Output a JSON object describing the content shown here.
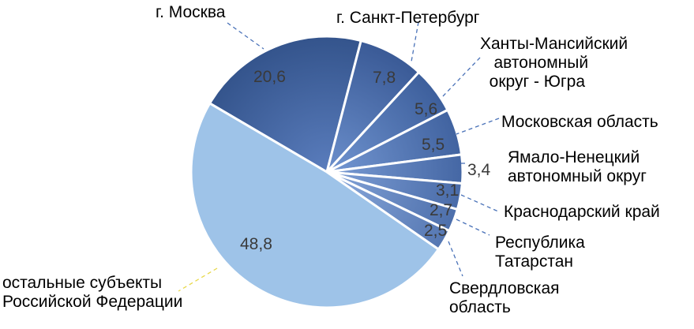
{
  "chart_data": {
    "type": "pie",
    "title": "",
    "start_angle_deg": -149.6,
    "center": [
      414,
      218
    ],
    "radius": 172,
    "slices": [
      {
        "label": "г. Москва",
        "value": 20.6,
        "value_label": "20,6",
        "color_dark": "#34548c",
        "color_light": "#5a7dbd"
      },
      {
        "label": "г. Санкт-Петербург",
        "value": 7.8,
        "value_label": "7,8",
        "color_dark": "#3a5a96",
        "color_light": "#6b8fcc"
      },
      {
        "label": "Ханты-Мансийский автономный округ - Югра",
        "value": 5.6,
        "value_label": "5,6",
        "color_dark": "#3d5f9c",
        "color_light": "#7094d0"
      },
      {
        "label": "Московская область",
        "value": 5.5,
        "value_label": "5,5",
        "color_dark": "#4163a0",
        "color_light": "#7598d3"
      },
      {
        "label": "Ямало-Ненецкий автономный округ",
        "value": 3.4,
        "value_label": "3,4",
        "color_dark": "#4567a4",
        "color_light": "#7a9cd5"
      },
      {
        "label": "Краснодарский край",
        "value": 3.1,
        "value_label": "3,1",
        "color_dark": "#496ba8",
        "color_light": "#7fa0d7"
      },
      {
        "label": "Республика Татарстан",
        "value": 2.7,
        "value_label": "2,7",
        "color_dark": "#4d6fab",
        "color_light": "#84a4d9"
      },
      {
        "label": "Свердловская область",
        "value": 2.5,
        "value_label": "2,5",
        "color_dark": "#5577b2",
        "color_light": "#8aa9dc"
      },
      {
        "label": "остальные субъекты Российской Федерации",
        "value": 48.8,
        "value_label": "48,8",
        "color_dark": "#9ec3e8",
        "color_light": "#9ec3e8"
      }
    ],
    "leader_line_color": "#4a72b8",
    "leader_line_color_other": "#e8d94a",
    "legend": "none (data labels with leader lines)"
  },
  "labels": {
    "moscow": "г. Москва",
    "spb": "г. Санкт-Петербург",
    "khmao": "Ханты-Мансийский\n   автономный\n  округ - Югра",
    "mo": "Московская область",
    "yanao": "Ямало-Ненецкий\nавтономный округ",
    "krasnodar": "Краснодарский край",
    "tatarstan": "Республика\nТатарстан",
    "sverdlovsk": "Свердловская\nобласть",
    "other": "остальные субъекты\nРоссийской Федерации"
  },
  "values": {
    "moscow": "20,6",
    "spb": "7,8",
    "khmao": "5,6",
    "mo": "5,5",
    "yanao": "3,4",
    "krasnodar": "3,1",
    "tatarstan": "2,7",
    "sverdlovsk": "2,5",
    "other": "48,8"
  }
}
